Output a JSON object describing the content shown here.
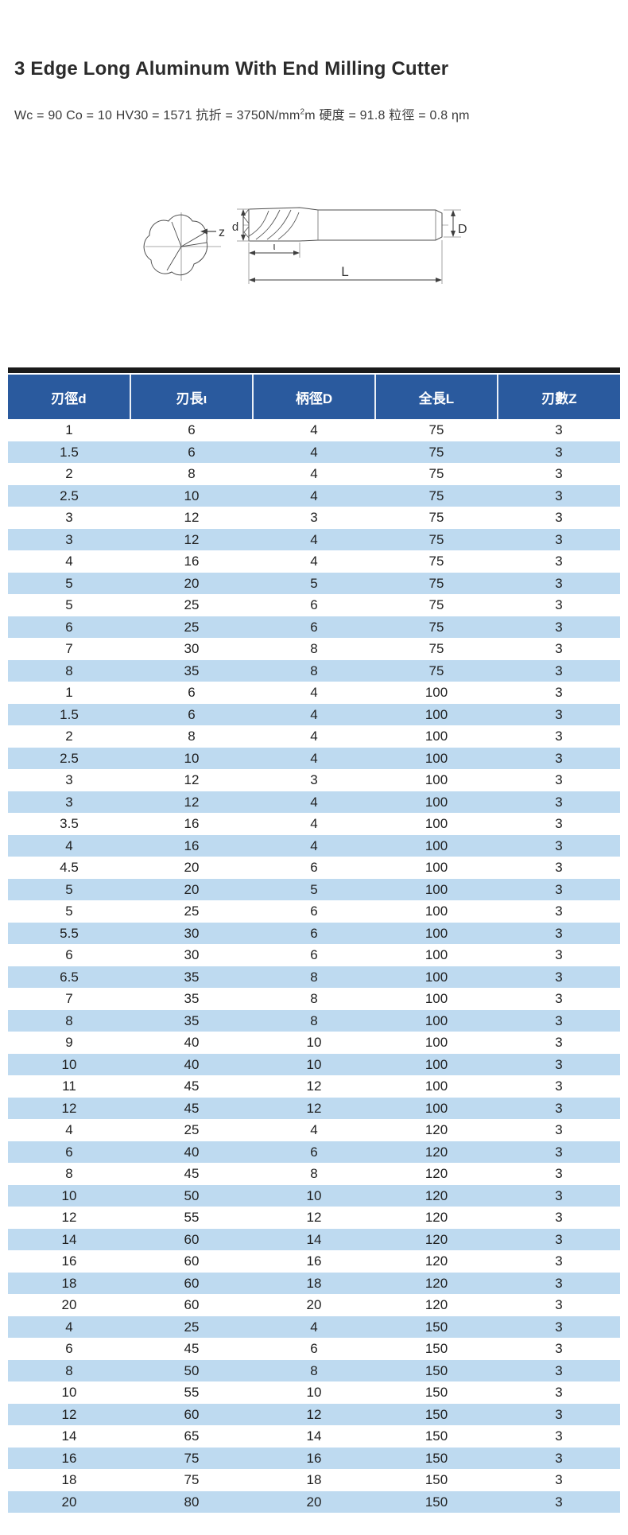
{
  "page": {
    "title": "3 Edge Long Aluminum With End Milling Cutter",
    "spec_line": {
      "before_sup": "Wc = 90 Co = 10 HV30 = 1571 抗折 = 3750N/mm",
      "sup": "2",
      "after_sup": "m 硬度 = 91.8 粒徑 = 0.8 ηm"
    }
  },
  "diagram": {
    "labels": {
      "z": "z",
      "d": "d",
      "iota": "ι",
      "L": "L",
      "D": "D"
    }
  },
  "table": {
    "colors": {
      "header_bg": "#2a5a9e",
      "header_text": "#ffffff",
      "stripe_bg": "#bedaf0",
      "top_bar": "#1a1a1a"
    },
    "columns": [
      "刃徑d",
      "刃長ι",
      "柄徑D",
      "全長L",
      "刃數Z"
    ],
    "rows": [
      [
        "1",
        "6",
        "4",
        "75",
        "3"
      ],
      [
        "1.5",
        "6",
        "4",
        "75",
        "3"
      ],
      [
        "2",
        "8",
        "4",
        "75",
        "3"
      ],
      [
        "2.5",
        "10",
        "4",
        "75",
        "3"
      ],
      [
        "3",
        "12",
        "3",
        "75",
        "3"
      ],
      [
        "3",
        "12",
        "4",
        "75",
        "3"
      ],
      [
        "4",
        "16",
        "4",
        "75",
        "3"
      ],
      [
        "5",
        "20",
        "5",
        "75",
        "3"
      ],
      [
        "5",
        "25",
        "6",
        "75",
        "3"
      ],
      [
        "6",
        "25",
        "6",
        "75",
        "3"
      ],
      [
        "7",
        "30",
        "8",
        "75",
        "3"
      ],
      [
        "8",
        "35",
        "8",
        "75",
        "3"
      ],
      [
        "1",
        "6",
        "4",
        "100",
        "3"
      ],
      [
        "1.5",
        "6",
        "4",
        "100",
        "3"
      ],
      [
        "2",
        "8",
        "4",
        "100",
        "3"
      ],
      [
        "2.5",
        "10",
        "4",
        "100",
        "3"
      ],
      [
        "3",
        "12",
        "3",
        "100",
        "3"
      ],
      [
        "3",
        "12",
        "4",
        "100",
        "3"
      ],
      [
        "3.5",
        "16",
        "4",
        "100",
        "3"
      ],
      [
        "4",
        "16",
        "4",
        "100",
        "3"
      ],
      [
        "4.5",
        "20",
        "6",
        "100",
        "3"
      ],
      [
        "5",
        "20",
        "5",
        "100",
        "3"
      ],
      [
        "5",
        "25",
        "6",
        "100",
        "3"
      ],
      [
        "5.5",
        "30",
        "6",
        "100",
        "3"
      ],
      [
        "6",
        "30",
        "6",
        "100",
        "3"
      ],
      [
        "6.5",
        "35",
        "8",
        "100",
        "3"
      ],
      [
        "7",
        "35",
        "8",
        "100",
        "3"
      ],
      [
        "8",
        "35",
        "8",
        "100",
        "3"
      ],
      [
        "9",
        "40",
        "10",
        "100",
        "3"
      ],
      [
        "10",
        "40",
        "10",
        "100",
        "3"
      ],
      [
        "11",
        "45",
        "12",
        "100",
        "3"
      ],
      [
        "12",
        "45",
        "12",
        "100",
        "3"
      ],
      [
        "4",
        "25",
        "4",
        "120",
        "3"
      ],
      [
        "6",
        "40",
        "6",
        "120",
        "3"
      ],
      [
        "8",
        "45",
        "8",
        "120",
        "3"
      ],
      [
        "10",
        "50",
        "10",
        "120",
        "3"
      ],
      [
        "12",
        "55",
        "12",
        "120",
        "3"
      ],
      [
        "14",
        "60",
        "14",
        "120",
        "3"
      ],
      [
        "16",
        "60",
        "16",
        "120",
        "3"
      ],
      [
        "18",
        "60",
        "18",
        "120",
        "3"
      ],
      [
        "20",
        "60",
        "20",
        "120",
        "3"
      ],
      [
        "4",
        "25",
        "4",
        "150",
        "3"
      ],
      [
        "6",
        "45",
        "6",
        "150",
        "3"
      ],
      [
        "8",
        "50",
        "8",
        "150",
        "3"
      ],
      [
        "10",
        "55",
        "10",
        "150",
        "3"
      ],
      [
        "12",
        "60",
        "12",
        "150",
        "3"
      ],
      [
        "14",
        "65",
        "14",
        "150",
        "3"
      ],
      [
        "16",
        "75",
        "16",
        "150",
        "3"
      ],
      [
        "18",
        "75",
        "18",
        "150",
        "3"
      ],
      [
        "20",
        "80",
        "20",
        "150",
        "3"
      ]
    ]
  }
}
